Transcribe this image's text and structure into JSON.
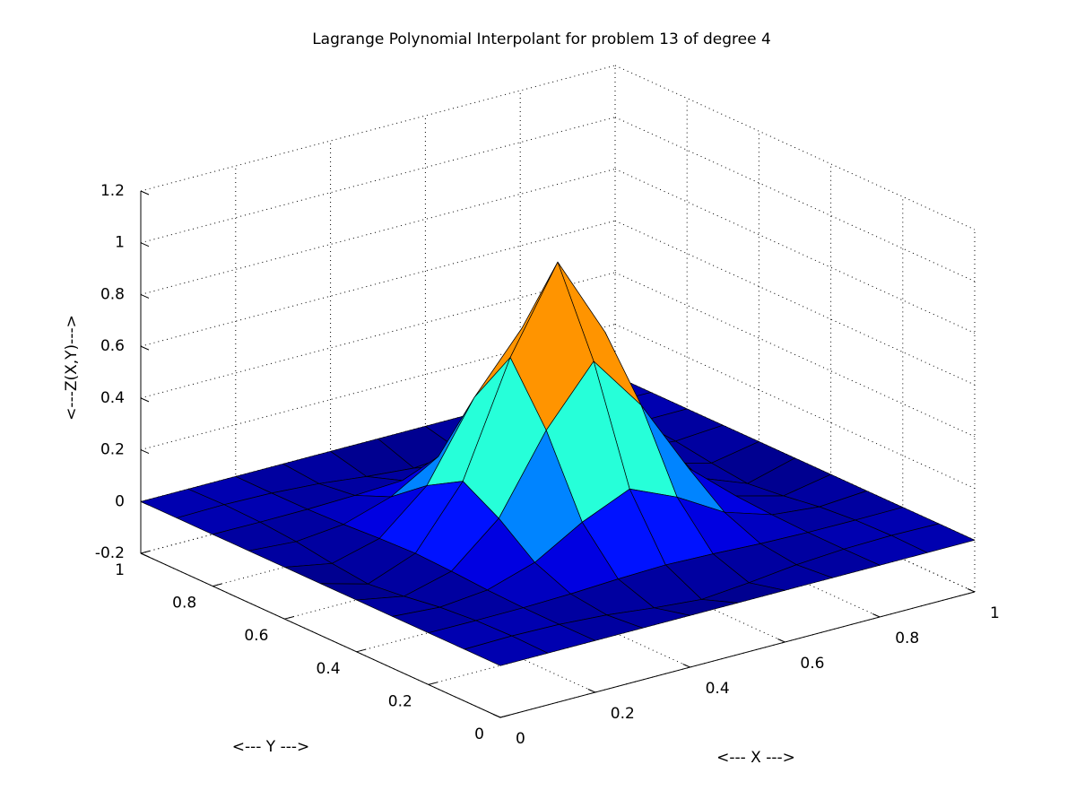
{
  "chart_data": {
    "type": "surface",
    "title": "Lagrange Polynomial Interpolant for problem 13 of degree 4",
    "xlabel": "<--- X --->",
    "ylabel": "<--- Y --->",
    "zlabel": "<---Z(X,Y)--->",
    "x": [
      0,
      0.1,
      0.2,
      0.3,
      0.4,
      0.5,
      0.6,
      0.7,
      0.8,
      0.9,
      1
    ],
    "y": [
      0,
      0.1,
      0.2,
      0.3,
      0.4,
      0.5,
      0.6,
      0.7,
      0.8,
      0.9,
      1
    ],
    "z": [
      [
        0,
        0,
        0,
        0,
        0,
        0,
        0,
        0,
        0,
        0,
        0
      ],
      [
        0,
        0.003,
        -0.001,
        -0.013,
        -0.034,
        -0.05,
        -0.034,
        -0.013,
        -0.001,
        0.003,
        0
      ],
      [
        0,
        -0.001,
        0,
        0.005,
        0.014,
        0.02,
        0.014,
        0.005,
        0,
        -0.001,
        0
      ],
      [
        0,
        -0.013,
        0.005,
        0.063,
        0.17,
        0.25,
        0.17,
        0.063,
        0.005,
        -0.013,
        0
      ],
      [
        0,
        -0.034,
        0.014,
        0.17,
        0.462,
        0.68,
        0.462,
        0.17,
        0.014,
        -0.034,
        0
      ],
      [
        0,
        -0.05,
        0.02,
        0.25,
        0.68,
        1,
        0.68,
        0.25,
        0.02,
        -0.05,
        0
      ],
      [
        0,
        -0.034,
        0.014,
        0.17,
        0.462,
        0.68,
        0.462,
        0.17,
        0.014,
        -0.034,
        0
      ],
      [
        0,
        -0.013,
        0.005,
        0.063,
        0.17,
        0.25,
        0.17,
        0.063,
        0.005,
        -0.013,
        0
      ],
      [
        0,
        -0.001,
        0,
        0.005,
        0.014,
        0.02,
        0.014,
        0.005,
        0,
        -0.001,
        0
      ],
      [
        0,
        0.003,
        -0.001,
        -0.013,
        -0.034,
        -0.05,
        -0.034,
        -0.013,
        -0.001,
        0.003,
        0
      ],
      [
        0,
        0,
        0,
        0,
        0,
        0,
        0,
        0,
        0,
        0,
        0
      ]
    ],
    "xlim": [
      0,
      1
    ],
    "ylim": [
      0,
      1
    ],
    "zlim": [
      -0.2,
      1.2
    ],
    "xticks": [
      0,
      0.2,
      0.4,
      0.6,
      0.8,
      1
    ],
    "yticks": [
      0,
      0.2,
      0.4,
      0.6,
      0.8,
      1
    ],
    "zticks": [
      -0.2,
      0,
      0.2,
      0.4,
      0.6,
      0.8,
      1,
      1.2
    ],
    "colormap": "jet",
    "grid": true
  }
}
